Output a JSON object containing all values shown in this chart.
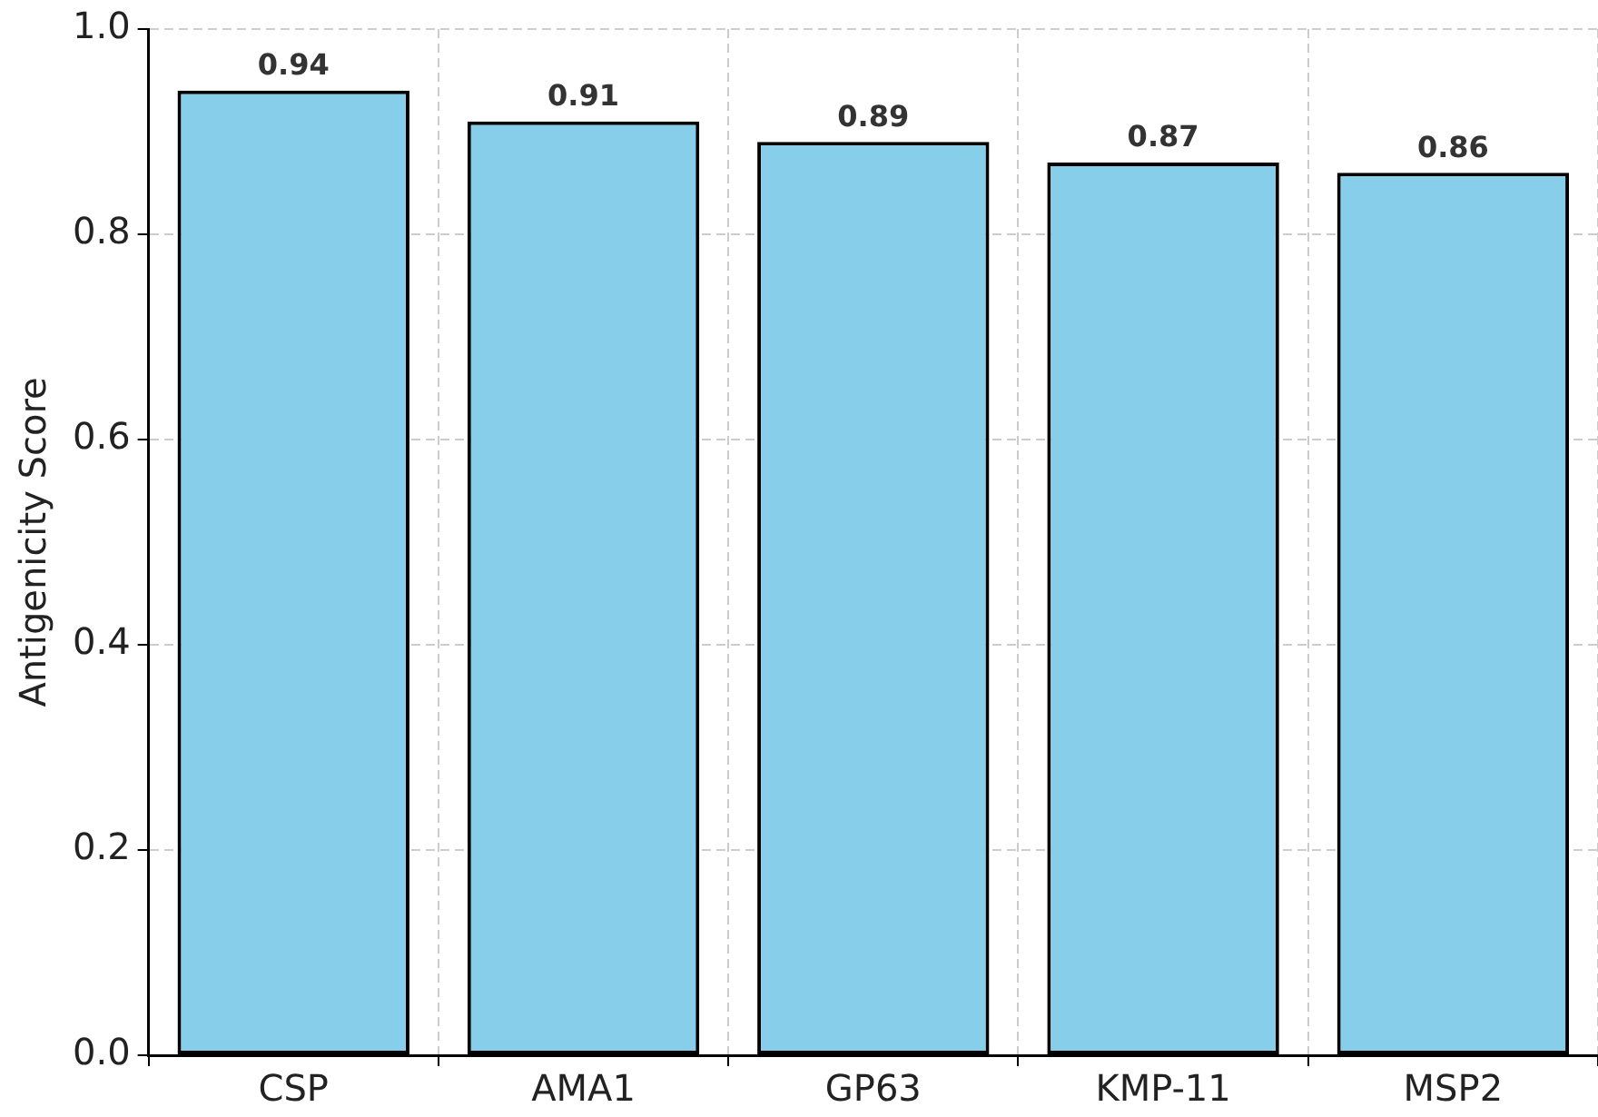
{
  "chart_data": {
    "type": "bar",
    "ylabel": "Antigenicity Score",
    "categories": [
      "CSP",
      "AMA1",
      "GP63",
      "KMP-11",
      "MSP2"
    ],
    "values": [
      0.94,
      0.91,
      0.89,
      0.87,
      0.86
    ],
    "color": "#87ceeb",
    "ylim": [
      0,
      1
    ],
    "yticks": [
      {
        "value": 0,
        "label": "0.0"
      },
      {
        "value": 0.2,
        "label": "0.2"
      },
      {
        "value": 0.4,
        "label": "0.4"
      },
      {
        "value": 0.6,
        "label": "0.6"
      },
      {
        "value": 0.8,
        "label": "0.8"
      },
      {
        "value": 1,
        "label": "1.0"
      }
    ],
    "grid": true,
    "data_labels": true
  }
}
